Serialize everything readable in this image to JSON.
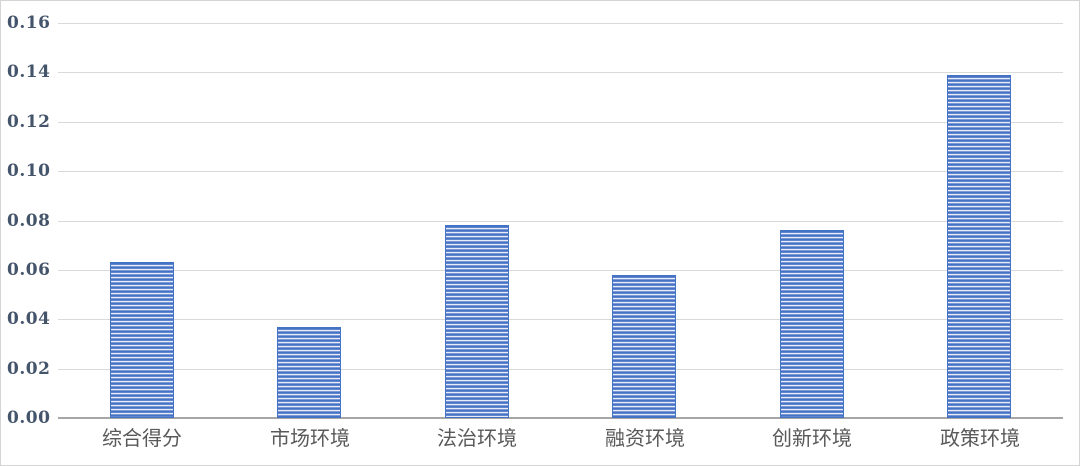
{
  "chart": {
    "title": "",
    "colors": {
      "bar_primary": "#4472c4",
      "bar_stripe_mid": "#7c99d6",
      "bar_stripe_light": "#e7ecf8",
      "gridline": "#d9d9d9",
      "axis_line": "#a6a6a6",
      "tick_label": "#44546a",
      "category_label": "#595959",
      "frame_border": "#d4d4d4",
      "background": "#ffffff"
    }
  },
  "chart_data": {
    "type": "bar",
    "categories": [
      "综合得分",
      "市场环境",
      "法治环境",
      "融资环境",
      "创新环境",
      "政策环境"
    ],
    "values": [
      0.063,
      0.037,
      0.078,
      0.058,
      0.076,
      0.139
    ],
    "series": [
      {
        "name": "",
        "values": [
          0.063,
          0.037,
          0.078,
          0.058,
          0.076,
          0.139
        ]
      }
    ],
    "title": "",
    "xlabel": "",
    "ylabel": "",
    "ylim": [
      0,
      0.16
    ],
    "ytick_step": 0.02,
    "ytick_labels": [
      "0.00",
      "0.02",
      "0.04",
      "0.06",
      "0.08",
      "0.10",
      "0.12",
      "0.14",
      "0.16"
    ],
    "grid": true,
    "legend": false,
    "bar_fill_style": "horizontal-stripe-pattern"
  }
}
